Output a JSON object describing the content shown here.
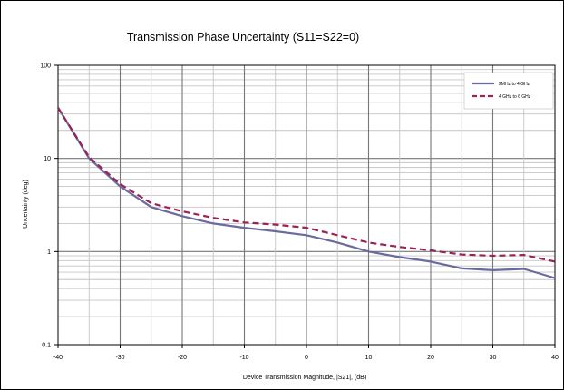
{
  "chart_data": {
    "type": "line",
    "title": "Transmission Phase Uncertainty (S11=S22=0)",
    "xlabel": "Device Transmission Magnitude, |S21|, (dB)",
    "ylabel": "Uncertainty (deg)",
    "xlim": [
      -40,
      40
    ],
    "ylim": [
      0.1,
      100
    ],
    "yscale": "log",
    "grid": true,
    "legend_position": "top-right",
    "x_ticks": [
      "-40",
      "-30",
      "-20",
      "-10",
      "0",
      "10",
      "20",
      "30",
      "40"
    ],
    "y_ticks": [
      "0.1",
      "1",
      "10",
      "100"
    ],
    "series": [
      {
        "name": "2MHz to 4 GHz",
        "color": "#6a6a9e",
        "style": "solid",
        "x": [
          -40,
          -35,
          -30,
          -25,
          -20,
          -15,
          -10,
          -5,
          0,
          5,
          10,
          15,
          20,
          25,
          30,
          35,
          40
        ],
        "y": [
          35,
          10,
          5,
          3,
          2.4,
          2.0,
          1.8,
          1.65,
          1.5,
          1.25,
          1.0,
          0.87,
          0.78,
          0.66,
          0.63,
          0.65,
          0.52
        ]
      },
      {
        "name": "4 GHz to 6 GHz",
        "color": "#9a2255",
        "style": "dashed",
        "x": [
          -40,
          -35,
          -30,
          -25,
          -20,
          -15,
          -10,
          -5,
          0,
          5,
          10,
          15,
          20,
          25,
          30,
          35,
          40
        ],
        "y": [
          35,
          10.3,
          5.3,
          3.3,
          2.7,
          2.3,
          2.05,
          1.95,
          1.8,
          1.5,
          1.25,
          1.12,
          1.03,
          0.93,
          0.9,
          0.92,
          0.78
        ]
      }
    ]
  }
}
